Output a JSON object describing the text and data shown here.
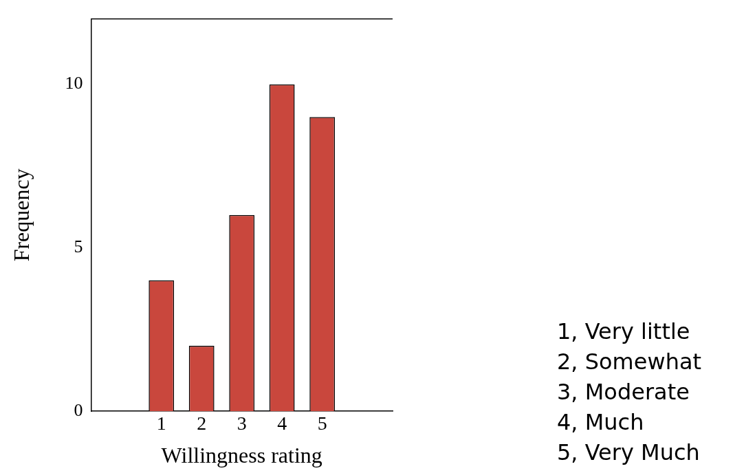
{
  "chart_data": {
    "type": "bar",
    "xlabel": "Willingness rating",
    "ylabel": "Frequency",
    "categories": [
      "1",
      "2",
      "3",
      "4",
      "5"
    ],
    "values": [
      4,
      2,
      6,
      10,
      9
    ],
    "color": "#c9473d",
    "ylim": [
      0,
      12
    ],
    "yticks": [
      0,
      5,
      10
    ],
    "grid": false,
    "legend": false,
    "annotations": [
      "1, Very little",
      "2, Somewhat",
      "3, Moderate",
      "4, Much",
      "5, Very Much"
    ]
  }
}
